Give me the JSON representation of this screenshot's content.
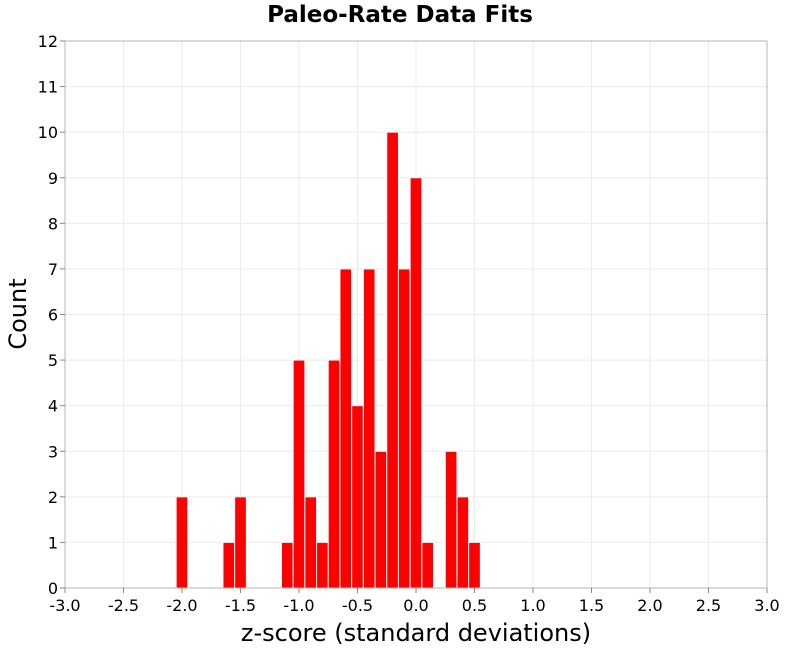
{
  "chart_data": {
    "type": "bar",
    "title": "Paleo-Rate Data Fits",
    "xlabel": "z-score (standard deviations)",
    "ylabel": "Count",
    "xlim": [
      -3.0,
      3.0
    ],
    "ylim": [
      0,
      12
    ],
    "bin_width": 0.1,
    "x_ticks": [
      "-3.0",
      "-2.5",
      "-2.0",
      "-1.5",
      "-1.0",
      "-0.5",
      "0.0",
      "0.5",
      "1.0",
      "1.5",
      "2.0",
      "2.5",
      "3.0"
    ],
    "y_ticks": [
      "0",
      "1",
      "2",
      "3",
      "4",
      "5",
      "6",
      "7",
      "8",
      "9",
      "10",
      "11",
      "12"
    ],
    "grid": true,
    "bar_color": "#ff0000",
    "bins": [
      {
        "x": -2.0,
        "count": 2
      },
      {
        "x": -1.6,
        "count": 1
      },
      {
        "x": -1.5,
        "count": 2
      },
      {
        "x": -1.1,
        "count": 1
      },
      {
        "x": -1.0,
        "count": 5
      },
      {
        "x": -0.9,
        "count": 2
      },
      {
        "x": -0.8,
        "count": 1
      },
      {
        "x": -0.7,
        "count": 5
      },
      {
        "x": -0.6,
        "count": 7
      },
      {
        "x": -0.5,
        "count": 4
      },
      {
        "x": -0.4,
        "count": 7
      },
      {
        "x": -0.3,
        "count": 3
      },
      {
        "x": -0.2,
        "count": 10
      },
      {
        "x": -0.1,
        "count": 7
      },
      {
        "x": 0.0,
        "count": 9
      },
      {
        "x": 0.1,
        "count": 1
      },
      {
        "x": 0.3,
        "count": 3
      },
      {
        "x": 0.4,
        "count": 2
      },
      {
        "x": 0.5,
        "count": 1
      }
    ]
  }
}
